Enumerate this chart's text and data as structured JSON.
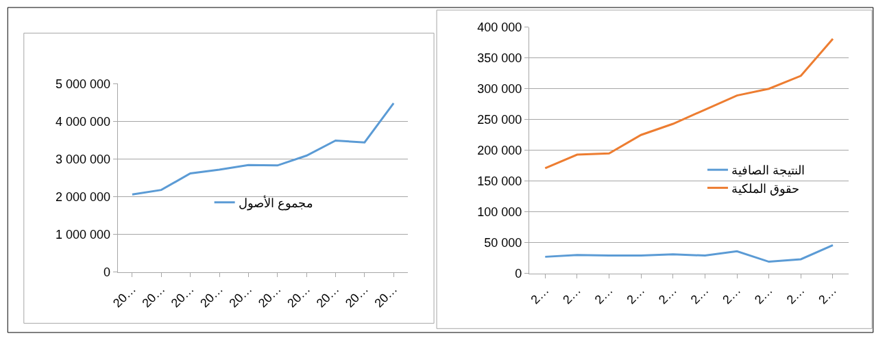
{
  "chart_data": [
    {
      "type": "line",
      "categories": [
        "20…",
        "20…",
        "20…",
        "20…",
        "20…",
        "20…",
        "20…",
        "20…",
        "20…",
        "20…"
      ],
      "series": [
        {
          "name": "مجموع الأصول",
          "color": "#5b9bd5",
          "values": [
            2060000,
            2180000,
            2620000,
            2720000,
            2840000,
            2830000,
            3090000,
            3490000,
            3440000,
            4480000
          ]
        }
      ],
      "ylim": [
        0,
        5000000
      ],
      "yticks": [
        0,
        {
          "value": 1000000,
          "label": "1 000 000"
        },
        {
          "value": 2000000,
          "label": "2 000 000"
        },
        {
          "value": 3000000,
          "label": "3 000 000"
        },
        {
          "value": 4000000,
          "label": "4 000 000"
        },
        {
          "value": 5000000,
          "label": "5 000 000"
        }
      ],
      "grid": "y",
      "legend": "center",
      "line_style": "solid"
    },
    {
      "type": "line",
      "categories": [
        "2…",
        "2…",
        "2…",
        "2…",
        "2…",
        "2…",
        "2…",
        "2…",
        "2…",
        "2…"
      ],
      "series": [
        {
          "name": "النتيجة الصافية",
          "color": "#5b9bd5",
          "values": [
            27000,
            30000,
            29000,
            29000,
            31000,
            29000,
            36000,
            19000,
            23000,
            46000
          ]
        },
        {
          "name": "حقوق الملكية",
          "color": "#ed7d31",
          "values": [
            171000,
            193000,
            195000,
            225000,
            243000,
            266000,
            289000,
            300000,
            321000,
            381000
          ]
        }
      ],
      "ylim": [
        0,
        400000
      ],
      "yticks": [
        0,
        {
          "value": 50000,
          "label": "50 000"
        },
        {
          "value": 100000,
          "label": "100 000"
        },
        {
          "value": 150000,
          "label": "150 000"
        },
        {
          "value": 200000,
          "label": "200 000"
        },
        {
          "value": 250000,
          "label": "250 000"
        },
        {
          "value": 300000,
          "label": "300 000"
        },
        {
          "value": 350000,
          "label": "350 000"
        },
        {
          "value": 400000,
          "label": "400 000"
        }
      ],
      "grid": "y",
      "legend": "right",
      "line_style": "solid"
    }
  ]
}
